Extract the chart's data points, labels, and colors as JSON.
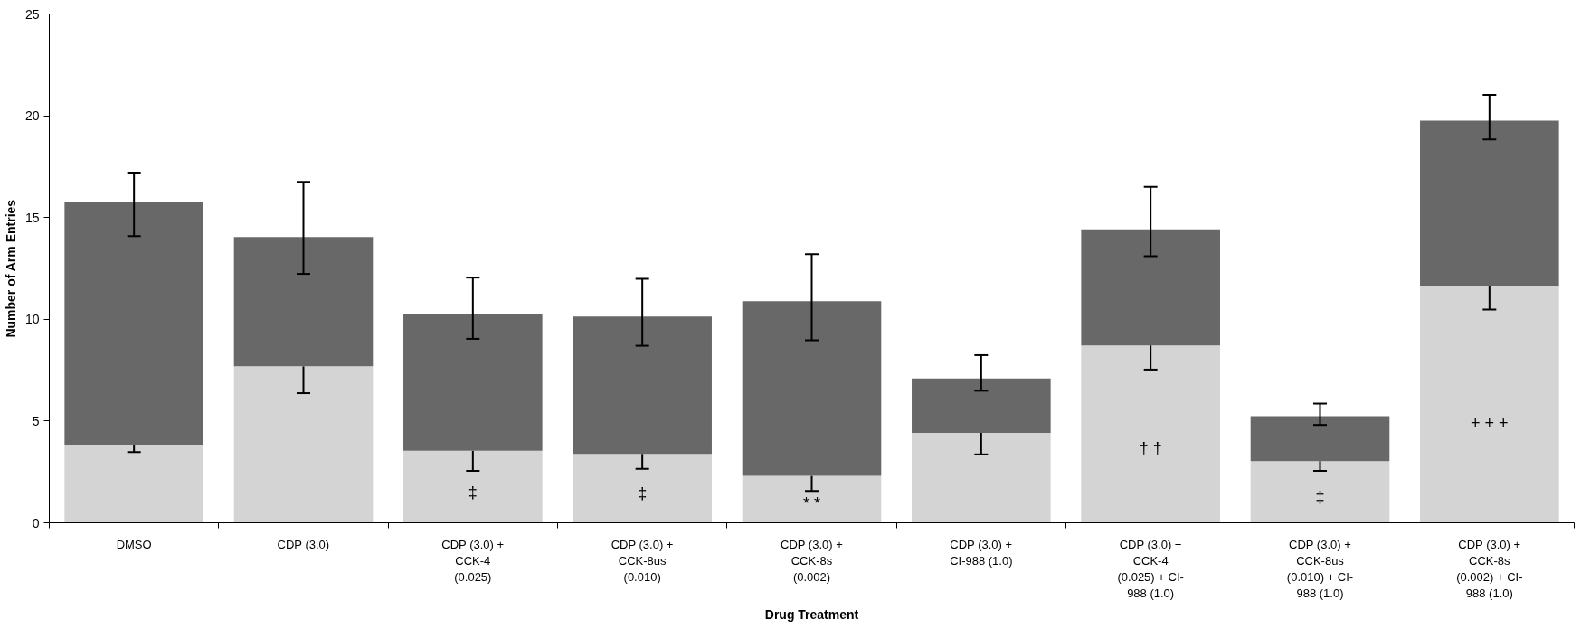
{
  "chart_data": {
    "type": "bar",
    "stacked": true,
    "xlabel": "Drug Treatment",
    "ylabel": "Number of Arm Entries",
    "categories": [
      "DMSO",
      "CDP (3.0)",
      "CDP (3.0) +\nCCK-4\n(0.025)",
      "CDP (3.0) +\nCCK-8us\n(0.010)",
      "CDP (3.0) +\nCCK-8s\n(0.002)",
      "CDP (3.0) +\nCI-988 (1.0)",
      "CDP (3.0) +\nCCK-4\n(0.025) + CI-\n988 (1.0)",
      "CDP (3.0) +\nCCK-8us\n(0.010) + CI-\n988 (1.0)",
      "CDP (3.0) +\nCCK-8s\n(0.002) + CI-\n988 (1.0)"
    ],
    "series": [
      {
        "color": "#d4d4d4",
        "values": [
          3.84,
          7.69,
          3.54,
          3.39,
          2.31,
          4.42,
          8.72,
          3.03,
          11.63
        ],
        "value_labels": [
          null,
          null,
          "‡",
          "‡",
          "* *",
          null,
          "† †",
          "‡",
          "+ + +"
        ],
        "errors": [
          [
            3.48,
            3.84
          ],
          [
            6.37,
            7.69
          ],
          [
            2.55,
            3.54
          ],
          [
            2.65,
            3.39
          ],
          [
            1.56,
            2.31
          ],
          [
            3.36,
            4.42
          ],
          [
            7.53,
            8.72
          ],
          [
            2.55,
            3.03
          ],
          [
            10.48,
            11.63
          ]
        ]
      },
      {
        "color": "#686868",
        "values": [
          11.93,
          6.35,
          6.73,
          6.75,
          8.58,
          2.67,
          5.7,
          2.21,
          8.13
        ],
        "errors": [
          [
            14.09,
            17.21
          ],
          [
            12.23,
            16.75
          ],
          [
            9.04,
            12.05
          ],
          [
            8.7,
            11.99
          ],
          [
            8.97,
            13.2
          ],
          [
            6.49,
            8.24
          ],
          [
            13.1,
            16.51
          ],
          [
            4.81,
            5.86
          ],
          [
            18.84,
            21.03
          ]
        ]
      }
    ],
    "ylim": [
      0,
      25
    ],
    "yticks": [
      0,
      5,
      10,
      15,
      20,
      25
    ],
    "grid": false
  }
}
